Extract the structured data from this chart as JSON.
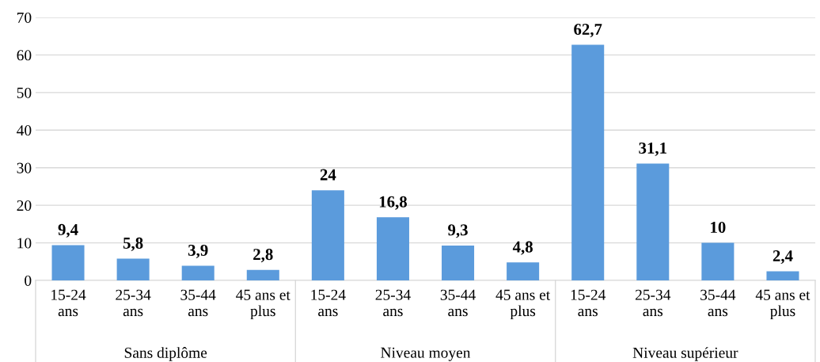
{
  "chart_data": {
    "type": "bar",
    "categories": [
      "15-24\nans",
      "25-34\nans",
      "35-44\nans",
      "45 ans et\nplus",
      "15-24\nans",
      "25-34\nans",
      "35-44\nans",
      "45 ans et\nplus",
      "15-24\nans",
      "25-34\nans",
      "35-44\nans",
      "45 ans et\nplus"
    ],
    "values": [
      9.4,
      5.8,
      3.9,
      2.8,
      24,
      16.8,
      9.3,
      4.8,
      62.7,
      31.1,
      10,
      2.4
    ],
    "value_labels": [
      "9,4",
      "5,8",
      "3,9",
      "2,8",
      "24",
      "16,8",
      "9,3",
      "4,8",
      "62,7",
      "31,1",
      "10",
      "2,4"
    ],
    "color": "#5b9bdc",
    "annotations": [
      "Sans diplôme",
      "Niveau moyen",
      "Niveau supérieur"
    ],
    "ylim": [
      0,
      70
    ],
    "yticks": [
      0,
      10,
      20,
      30,
      40,
      50,
      60,
      70
    ],
    "grid": "y"
  }
}
